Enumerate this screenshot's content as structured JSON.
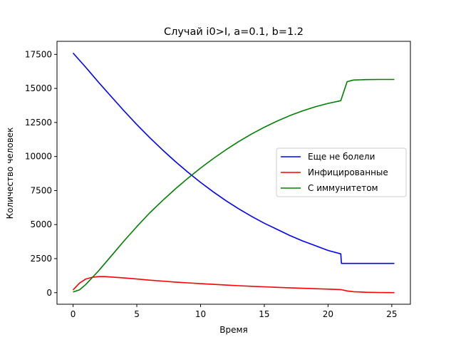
{
  "chart_data": {
    "type": "line",
    "title": "Случай i0>I, a=0.1, b=1.2",
    "xlabel": "Время",
    "ylabel": "Количество человек",
    "xlim": [
      -1.26,
      26.46
    ],
    "ylim": [
      -850,
      18460
    ],
    "xticks": [
      0,
      5,
      10,
      15,
      20,
      25
    ],
    "yticks": [
      0,
      2500,
      5000,
      7500,
      10000,
      12500,
      15000,
      17500
    ],
    "grid": false,
    "legend_position": "center-right",
    "series": [
      {
        "name": "Еще не болели",
        "color": "#0000ff",
        "points": [
          [
            0,
            17600
          ],
          [
            1,
            16550
          ],
          [
            2,
            15450
          ],
          [
            3,
            14400
          ],
          [
            4,
            13350
          ],
          [
            5,
            12350
          ],
          [
            6,
            11400
          ],
          [
            7,
            10500
          ],
          [
            8,
            9650
          ],
          [
            9,
            8850
          ],
          [
            10,
            8100
          ],
          [
            11,
            7400
          ],
          [
            12,
            6750
          ],
          [
            13,
            6150
          ],
          [
            14,
            5600
          ],
          [
            15,
            5100
          ],
          [
            16,
            4650
          ],
          [
            17,
            4200
          ],
          [
            18,
            3800
          ],
          [
            19,
            3450
          ],
          [
            20,
            3100
          ],
          [
            21,
            2850
          ],
          [
            21.05,
            2150
          ],
          [
            22,
            2150
          ],
          [
            23,
            2150
          ],
          [
            24,
            2150
          ],
          [
            25,
            2150
          ],
          [
            25.2,
            2150
          ]
        ]
      },
      {
        "name": "Инфицированные",
        "color": "#ff0000",
        "points": [
          [
            0,
            200
          ],
          [
            0.5,
            700
          ],
          [
            1,
            1000
          ],
          [
            1.5,
            1130
          ],
          [
            2,
            1180
          ],
          [
            2.5,
            1180
          ],
          [
            3,
            1150
          ],
          [
            4,
            1080
          ],
          [
            5,
            1000
          ],
          [
            6,
            920
          ],
          [
            7,
            850
          ],
          [
            8,
            780
          ],
          [
            9,
            720
          ],
          [
            10,
            660
          ],
          [
            11,
            610
          ],
          [
            12,
            560
          ],
          [
            13,
            510
          ],
          [
            14,
            470
          ],
          [
            15,
            430
          ],
          [
            16,
            390
          ],
          [
            17,
            360
          ],
          [
            18,
            320
          ],
          [
            19,
            290
          ],
          [
            20,
            260
          ],
          [
            21,
            230
          ],
          [
            21.5,
            130
          ],
          [
            22,
            70
          ],
          [
            23,
            30
          ],
          [
            24,
            15
          ],
          [
            25,
            5
          ],
          [
            25.2,
            5
          ]
        ]
      },
      {
        "name": "С иммунитетом",
        "color": "#008000",
        "points": [
          [
            0,
            50
          ],
          [
            0.5,
            200
          ],
          [
            1,
            600
          ],
          [
            2,
            1600
          ],
          [
            3,
            2700
          ],
          [
            4,
            3800
          ],
          [
            5,
            4850
          ],
          [
            6,
            5850
          ],
          [
            7,
            6750
          ],
          [
            8,
            7600
          ],
          [
            9,
            8400
          ],
          [
            10,
            9150
          ],
          [
            11,
            9850
          ],
          [
            12,
            10500
          ],
          [
            13,
            11100
          ],
          [
            14,
            11650
          ],
          [
            15,
            12150
          ],
          [
            16,
            12600
          ],
          [
            17,
            13000
          ],
          [
            18,
            13350
          ],
          [
            19,
            13650
          ],
          [
            20,
            13900
          ],
          [
            21,
            14100
          ],
          [
            21.5,
            15500
          ],
          [
            22,
            15620
          ],
          [
            23,
            15650
          ],
          [
            24,
            15660
          ],
          [
            25,
            15660
          ],
          [
            25.2,
            15660
          ]
        ]
      }
    ]
  }
}
